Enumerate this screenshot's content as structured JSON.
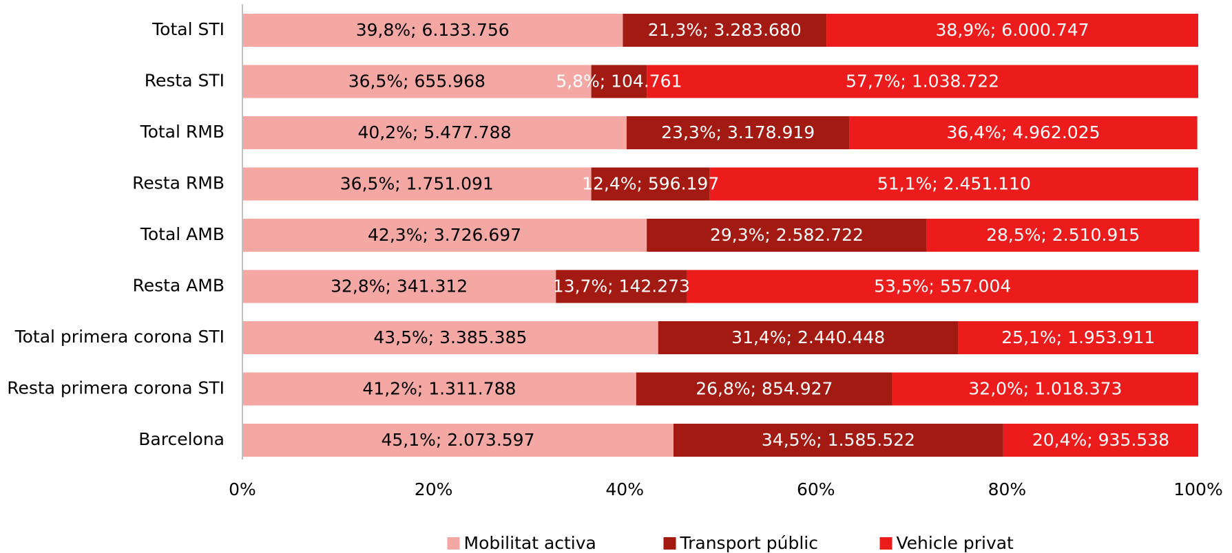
{
  "chart_data": {
    "type": "stacked-barh",
    "categories": [
      "Total STI",
      "Resta STI",
      "Total RMB",
      "Resta RMB",
      "Total AMB",
      "Resta AMB",
      "Total primera corona STI",
      "Resta primera corona STI",
      "Barcelona"
    ],
    "series": [
      {
        "name": "Mobilitat activa",
        "color": "#f4a7a3",
        "label_color": "#000000",
        "values": [
          39.8,
          36.5,
          40.2,
          36.5,
          42.3,
          32.8,
          43.5,
          41.2,
          45.1
        ],
        "value_labels": [
          "39,8%; 6.133.756",
          "36,5%; 655.968",
          "40,2%; 5.477.788",
          "36,5%; 1.751.091",
          "42,3%; 3.726.697",
          "32,8%; 341.312",
          "43,5%; 3.385.385",
          "41,2%; 1.311.788",
          "45,1%; 2.073.597"
        ]
      },
      {
        "name": "Transport públic",
        "color": "#a31a12",
        "label_color": "#ffffff",
        "values": [
          21.3,
          5.8,
          23.3,
          12.4,
          29.3,
          13.7,
          31.4,
          26.8,
          34.5
        ],
        "value_labels": [
          "21,3%; 3.283.680",
          "5,8%; 104.761",
          "23,3%; 3.178.919",
          "12,4%; 596.197",
          "29,3%; 2.582.722",
          "13,7%; 142.273",
          "31,4%; 2.440.448",
          "26,8%; 854.927",
          "34,5%; 1.585.522"
        ]
      },
      {
        "name": "Vehicle privat",
        "color": "#ec1c1c",
        "label_color": "#ffffff",
        "values": [
          38.9,
          57.7,
          36.4,
          51.1,
          28.5,
          53.5,
          25.1,
          32.0,
          20.4
        ],
        "value_labels": [
          "38,9%; 6.000.747",
          "57,7%; 1.038.722",
          "36,4%; 4.962.025",
          "51,1%; 2.451.110",
          "28,5%; 2.510.915",
          "53,5%; 557.004",
          "25,1%; 1.953.911",
          "32,0%; 1.018.373",
          "20,4%; 935.538"
        ]
      }
    ],
    "xlim": [
      0,
      100
    ],
    "xticks": [
      {
        "value": 0,
        "label": "0%"
      },
      {
        "value": 20,
        "label": "20%"
      },
      {
        "value": 40,
        "label": "40%"
      },
      {
        "value": 60,
        "label": "60%"
      },
      {
        "value": 80,
        "label": "80%"
      },
      {
        "value": 100,
        "label": "100%"
      }
    ],
    "legend": "bottom"
  }
}
